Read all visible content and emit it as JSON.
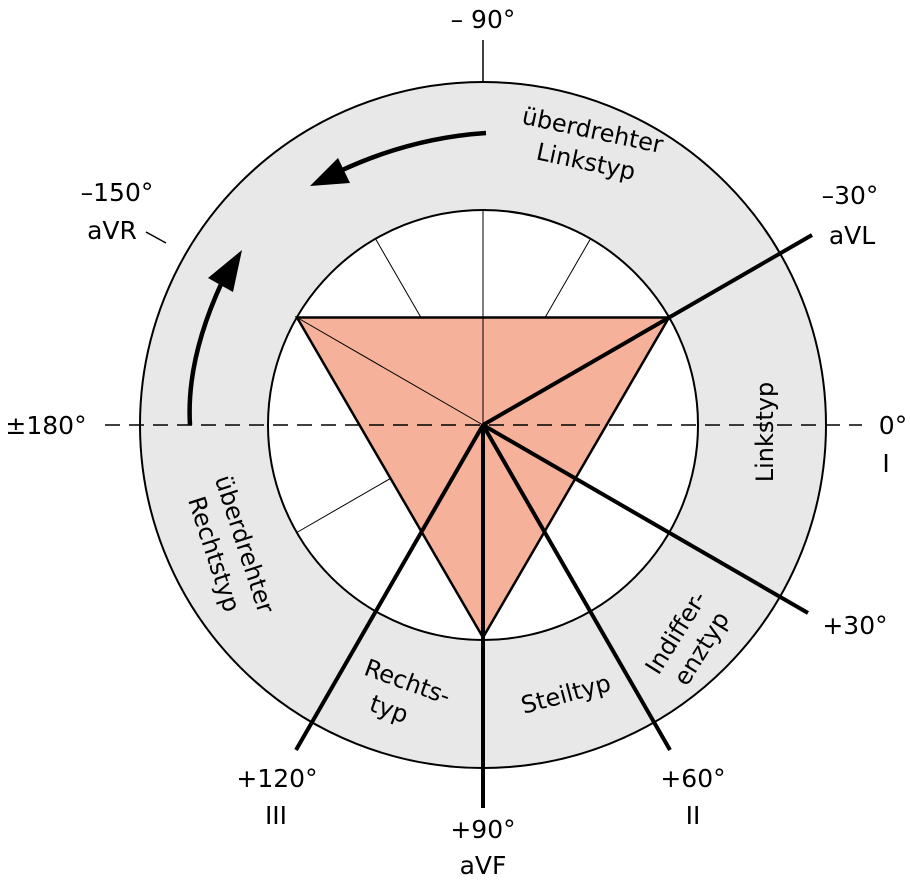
{
  "axes": {
    "minus90": "– 90°",
    "minus150": "–150°",
    "avr": "aVR",
    "minus30": "–30°",
    "avl": "aVL",
    "pm180": "±180°",
    "zero": "0°",
    "lead_i": "I",
    "plus30": "+30°",
    "plus60": "+60°",
    "lead_ii": "II",
    "plus90": "+90°",
    "avf": "aVF",
    "plus120": "+120°",
    "lead_iii": "III"
  },
  "zones": {
    "ueberdrehter_links": [
      "überdrehter",
      "Linkstyp"
    ],
    "links": "Linkstyp",
    "indifferenz": [
      "Indiffer-",
      "enztyp"
    ],
    "steil": "Steiltyp",
    "rechts": [
      "Rechts-",
      "typ"
    ],
    "ueberdrehter_rechts": [
      "überdrehter",
      "Rechtstyp"
    ]
  },
  "colors": {
    "ring": "#e8e8e8",
    "triangle": "#f5b19a",
    "line": "#000000"
  }
}
